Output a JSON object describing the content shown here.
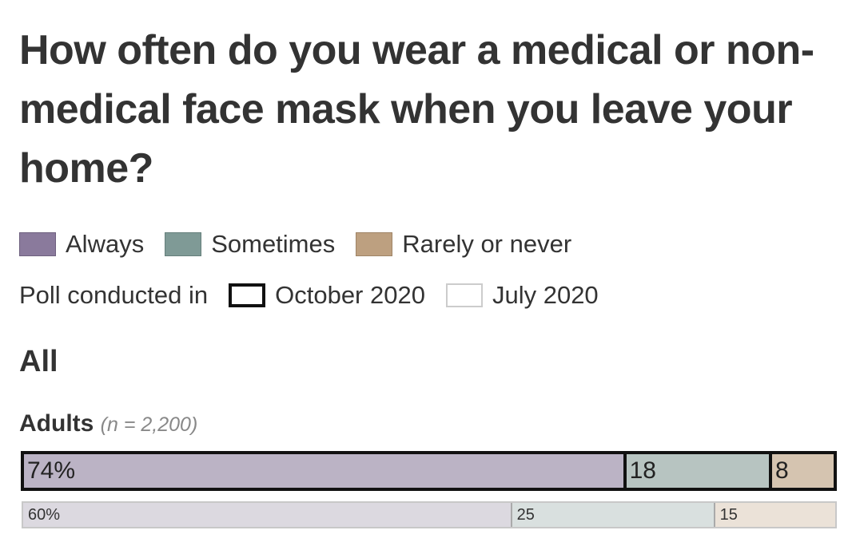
{
  "chart_data": {
    "type": "bar",
    "orientation": "horizontal-stacked",
    "title": "How often do you wear a medical or non-medical face mask when you leave your home?",
    "section": "All",
    "group": {
      "label": "Adults",
      "n": "(n = 2,200)"
    },
    "categories": [
      "Always",
      "Sometimes",
      "Rarely or never"
    ],
    "colors": [
      "#8a7a9c",
      "#7f9a96",
      "#bda080"
    ],
    "legend_prefix": "Poll conducted in",
    "polls": [
      {
        "name": "October 2020",
        "values": [
          74,
          18,
          8
        ],
        "labels": [
          "74%",
          "18",
          "8"
        ],
        "fills": [
          "#bbb3c5",
          "#b7c4c1",
          "#d5c4b0"
        ]
      },
      {
        "name": "July 2020",
        "values": [
          60,
          25,
          15
        ],
        "labels": [
          "60%",
          "25",
          "15"
        ],
        "fills": [
          "#dcd9e0",
          "#d9e0df",
          "#ebe2d8"
        ]
      }
    ],
    "xlim": [
      0,
      100
    ]
  }
}
